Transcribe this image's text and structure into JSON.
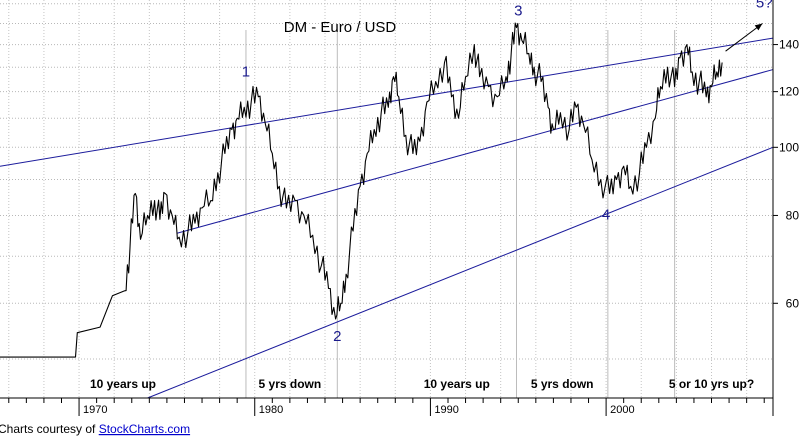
{
  "chart_data": {
    "type": "line",
    "title": "DM - Euro / USD",
    "x_axis": {
      "range": [
        1965.5,
        2009.5
      ],
      "ticks": [
        {
          "value": 1970,
          "label": "1970"
        },
        {
          "value": 1980,
          "label": "1980"
        },
        {
          "value": 1990,
          "label": "1990"
        },
        {
          "value": 2000,
          "label": "2000"
        }
      ]
    },
    "y_axis": {
      "scale": "log",
      "position": "right",
      "range": [
        44,
        162
      ],
      "ticks": [
        {
          "value": 60,
          "label": "60"
        },
        {
          "value": 80,
          "label": "80"
        },
        {
          "value": 100,
          "label": "100"
        },
        {
          "value": 120,
          "label": "120"
        },
        {
          "value": 140,
          "label": "140"
        }
      ]
    },
    "grid": true,
    "series": [
      {
        "points": [
          [
            1965.5,
            50.3
          ],
          [
            1969.8,
            50.3
          ],
          [
            1969.9,
            54.5
          ],
          [
            1971.2,
            55.5
          ],
          [
            1971.5,
            58
          ],
          [
            1971.9,
            61.5
          ],
          [
            1972.6,
            62.5
          ],
          [
            1972.9,
            72
          ],
          [
            1973.2,
            86
          ],
          [
            1973.5,
            74
          ],
          [
            1973.9,
            80
          ],
          [
            1974.3,
            84
          ],
          [
            1974.6,
            79
          ],
          [
            1974.9,
            86
          ],
          [
            1975.3,
            80
          ],
          [
            1975.7,
            74.5
          ],
          [
            1976.2,
            76
          ],
          [
            1976.6,
            78
          ],
          [
            1977.0,
            82
          ],
          [
            1977.5,
            84
          ],
          [
            1977.9,
            92
          ],
          [
            1978.3,
            98
          ],
          [
            1978.7,
            106
          ],
          [
            1979.0,
            110
          ],
          [
            1979.4,
            114
          ],
          [
            1979.8,
            116
          ],
          [
            1980.2,
            118
          ],
          [
            1980.6,
            108
          ],
          [
            1981.0,
            98
          ],
          [
            1981.4,
            88
          ],
          [
            1981.8,
            82
          ],
          [
            1982.3,
            84
          ],
          [
            1982.8,
            80
          ],
          [
            1983.3,
            75
          ],
          [
            1983.8,
            68
          ],
          [
            1984.2,
            63
          ],
          [
            1984.6,
            57
          ],
          [
            1984.9,
            60
          ],
          [
            1985.2,
            66
          ],
          [
            1985.6,
            76
          ],
          [
            1986.0,
            88
          ],
          [
            1986.4,
            98
          ],
          [
            1986.8,
            106
          ],
          [
            1987.2,
            112
          ],
          [
            1987.6,
            114
          ],
          [
            1987.9,
            126
          ],
          [
            1988.2,
            118
          ],
          [
            1988.6,
            104
          ],
          [
            1989.0,
            98
          ],
          [
            1989.4,
            102
          ],
          [
            1989.8,
            116
          ],
          [
            1990.3,
            124
          ],
          [
            1990.8,
            132
          ],
          [
            1991.2,
            118
          ],
          [
            1991.6,
            110
          ],
          [
            1992.0,
            126
          ],
          [
            1992.5,
            140
          ],
          [
            1992.8,
            126
          ],
          [
            1993.3,
            122
          ],
          [
            1993.8,
            118
          ],
          [
            1994.3,
            126
          ],
          [
            1994.6,
            136
          ],
          [
            1994.9,
            148
          ],
          [
            1995.2,
            142
          ],
          [
            1995.6,
            136
          ],
          [
            1995.9,
            130
          ],
          [
            1996.3,
            124
          ],
          [
            1996.7,
            114
          ],
          [
            1997.0,
            106
          ],
          [
            1997.4,
            112
          ],
          [
            1997.9,
            106
          ],
          [
            1998.3,
            114
          ],
          [
            1998.7,
            108
          ],
          [
            1999.2,
            96
          ],
          [
            1999.7,
            90
          ],
          [
            2000.2,
            86
          ],
          [
            2000.6,
            90
          ],
          [
            2001.0,
            94
          ],
          [
            2001.4,
            88
          ],
          [
            2001.9,
            92
          ],
          [
            2002.3,
            100
          ],
          [
            2002.8,
            110
          ],
          [
            2003.1,
            122
          ],
          [
            2003.5,
            130
          ],
          [
            2003.9,
            122
          ],
          [
            2004.2,
            134
          ],
          [
            2004.6,
            140
          ],
          [
            2004.9,
            128
          ],
          [
            2005.3,
            124
          ],
          [
            2005.7,
            118
          ],
          [
            2006.0,
            122
          ],
          [
            2006.3,
            128
          ],
          [
            2006.6,
            132
          ]
        ]
      }
    ],
    "channel_lines": [
      {
        "points": [
          [
            1965.5,
            94
          ],
          [
            2009.5,
            143
          ]
        ]
      },
      {
        "points": [
          [
            1975.6,
            75.5
          ],
          [
            2009.5,
            129
          ]
        ]
      },
      {
        "points": [
          [
            1973.9,
            44
          ],
          [
            2009.5,
            100
          ]
        ]
      }
    ],
    "vertical_markers": [
      {
        "x": 1979.5
      },
      {
        "x": 1984.7
      },
      {
        "x": 1994.9
      },
      {
        "x": 2000.1
      },
      {
        "x": 2003.9
      }
    ],
    "wave_labels": [
      {
        "text": "1",
        "x": 1979.5,
        "y": 126
      },
      {
        "text": "2",
        "x": 1984.7,
        "y": 53
      },
      {
        "text": "3",
        "x": 1995.0,
        "y": 154
      },
      {
        "text": "4",
        "x": 2000.0,
        "y": 79
      },
      {
        "text": "5?",
        "x": 2009.0,
        "y": 158
      }
    ],
    "arrow": {
      "from": [
        2006.8,
        137
      ],
      "to": [
        2008.9,
        150
      ]
    },
    "annotations": [
      {
        "text": "10 years up",
        "x": 1972.5
      },
      {
        "text": "5 yrs down",
        "x": 1982.0
      },
      {
        "text": "10 years up",
        "x": 1991.5
      },
      {
        "text": "5 yrs down",
        "x": 1997.5
      },
      {
        "text": "5 or 10 yrs up?",
        "x": 2006.0
      }
    ]
  },
  "credit": {
    "prefix": "Charts courtesy of ",
    "link": "StockCharts.com"
  }
}
